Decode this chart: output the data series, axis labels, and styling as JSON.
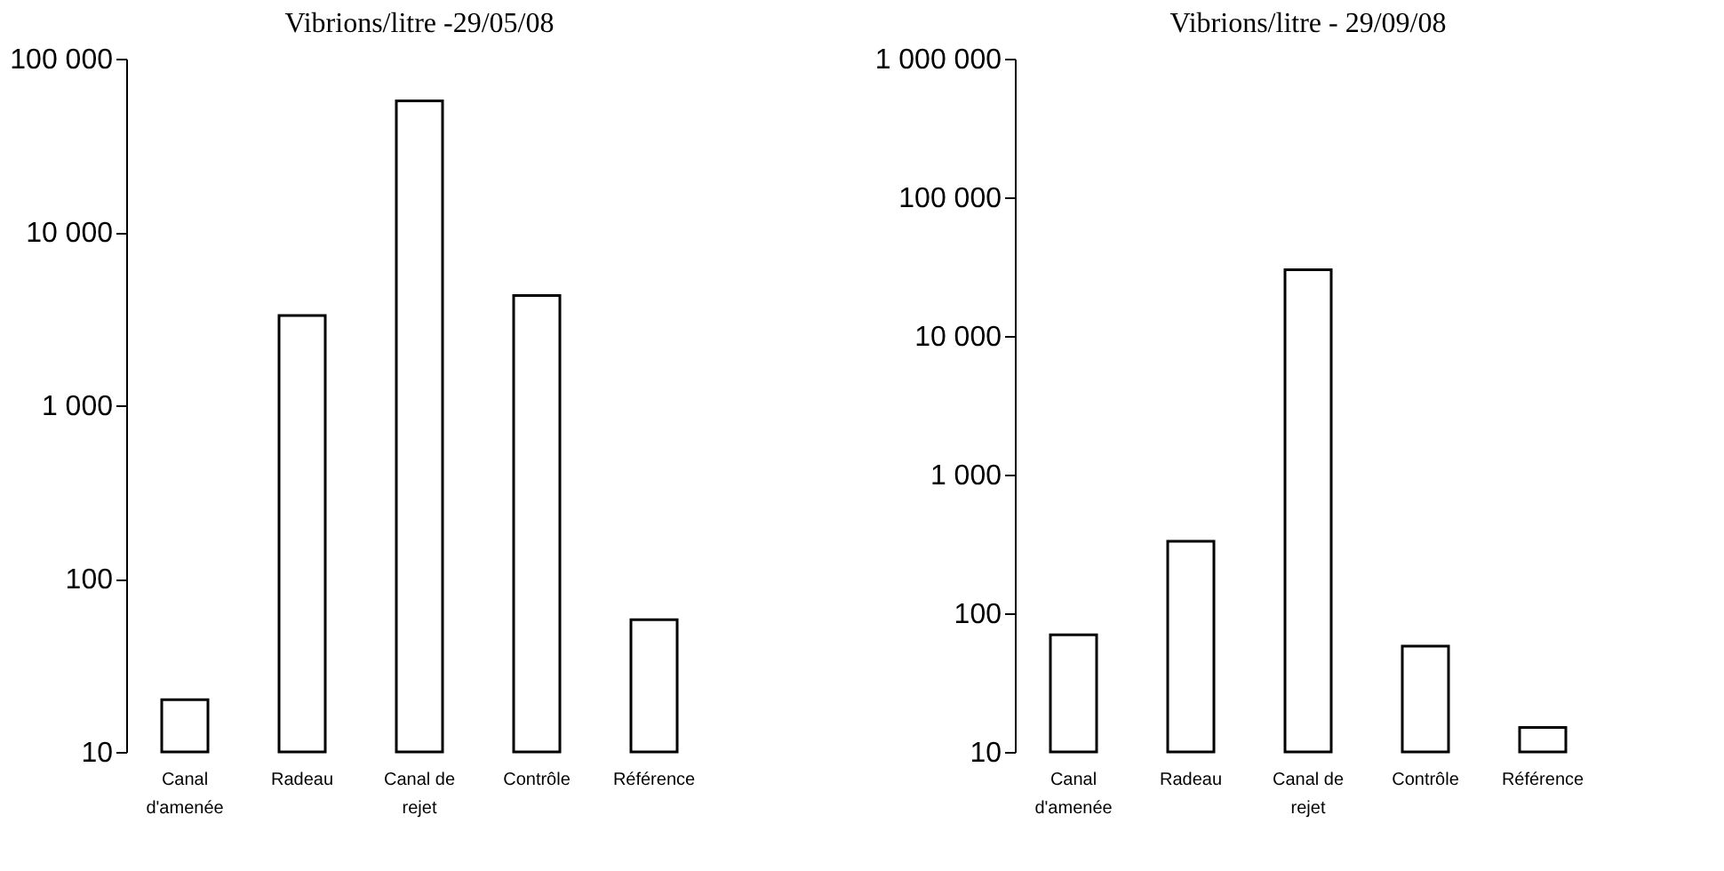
{
  "chart_data": [
    {
      "type": "bar",
      "title": "Vibrions/litre -29/05/08",
      "categories": [
        "Canal d'amenée",
        "Radeau",
        "Canal de rejet",
        "Contrôle",
        "Référence"
      ],
      "values": [
        20,
        3300,
        57000,
        4300,
        58
      ],
      "color": "#ffffff",
      "log": true,
      "ylim": [
        10,
        100000
      ],
      "yticks": [
        10,
        100,
        {
          "value": 1000,
          "label": "1 000"
        },
        {
          "value": 10000,
          "label": "10 000"
        },
        {
          "value": 100000,
          "label": "100 000"
        }
      ],
      "grid": false
    },
    {
      "type": "bar",
      "title": "Vibrions/litre - 29/09/08",
      "categories": [
        "Canal d'amenée",
        "Radeau",
        "Canal de rejet",
        "Contrôle",
        "Référence"
      ],
      "values": [
        70,
        330,
        30000,
        58,
        15
      ],
      "color": "#ffffff",
      "log": true,
      "ylim": [
        10,
        1000000
      ],
      "yticks": [
        10,
        100,
        {
          "value": 1000,
          "label": "1 000"
        },
        {
          "value": 10000,
          "label": "10 000"
        },
        {
          "value": 100000,
          "label": "100 000"
        },
        {
          "value": 1000000,
          "label": "1 000 000"
        }
      ],
      "grid": false
    }
  ]
}
